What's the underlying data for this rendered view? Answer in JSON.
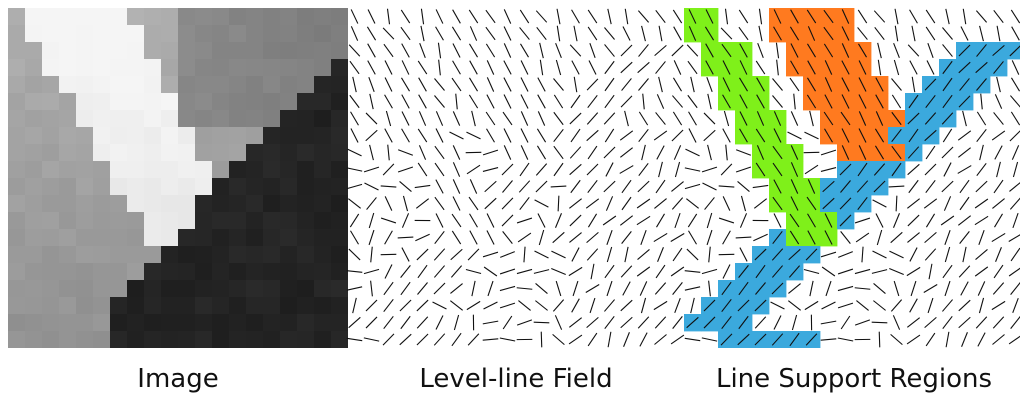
{
  "captions": {
    "image": "Image",
    "field": "Level-line Field",
    "regions": "Line Support Regions"
  },
  "colors": {
    "green_region": "#7ff01a",
    "orange_region": "#ff7a1f",
    "blue_region": "#3ba9dd",
    "line": "#111111",
    "background": "#ffffff"
  },
  "grid": {
    "rows": 20,
    "cols": 20
  }
}
